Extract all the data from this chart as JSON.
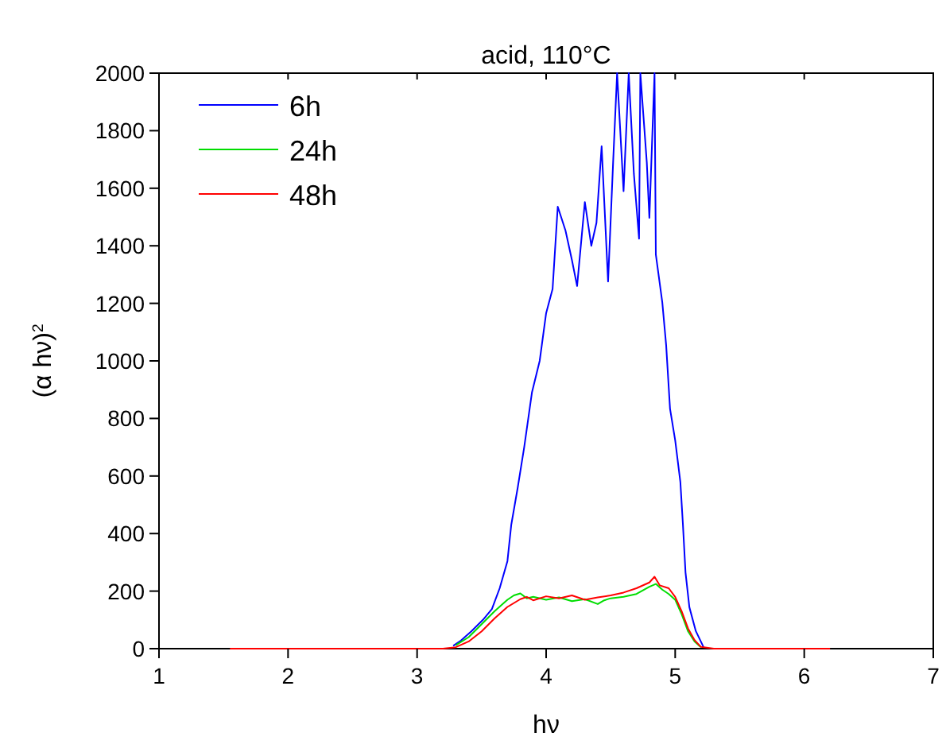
{
  "chart_data": {
    "type": "line",
    "title": "acid, 110°C",
    "xlabel": "hν",
    "ylabel": "(α hν)$^{2}$",
    "xlim": [
      1,
      7
    ],
    "xticks": [
      1,
      2,
      3,
      4,
      5,
      6,
      7
    ],
    "ylim": [
      0,
      2000
    ],
    "yticks": [
      0,
      200,
      400,
      600,
      800,
      1000,
      1200,
      1400,
      1600,
      1800,
      2000
    ],
    "grid": false,
    "legend": "top left",
    "line_style": "solid",
    "series": [
      {
        "name": "6h",
        "color": "#0000ff",
        "x": [
          3.28,
          3.34,
          3.42,
          3.51,
          3.58,
          3.64,
          3.7,
          3.73,
          3.78,
          3.83,
          3.89,
          3.95,
          4.0,
          4.05,
          4.09,
          4.15,
          4.2,
          4.24,
          4.3,
          4.35,
          4.39,
          4.43,
          4.48,
          4.52,
          4.55,
          4.6,
          4.64,
          4.68,
          4.72,
          4.73,
          4.78,
          4.8,
          4.84,
          4.85,
          4.9,
          4.93,
          4.96,
          5.0,
          5.04,
          5.06,
          5.08,
          5.11,
          5.16,
          5.22
        ],
        "values": [
          10,
          28,
          60,
          100,
          138,
          210,
          304,
          431,
          560,
          700,
          890,
          1000,
          1166,
          1250,
          1536,
          1453,
          1350,
          1260,
          1552,
          1400,
          1480,
          1746,
          1276,
          1700,
          2000,
          1590,
          2000,
          1650,
          1425,
          2000,
          1690,
          1497,
          2000,
          1370,
          1204,
          1055,
          834,
          724,
          580,
          431,
          265,
          144,
          61,
          5
        ]
      },
      {
        "name": "24h",
        "color": "#00dd00",
        "x": [
          3.3,
          3.4,
          3.5,
          3.6,
          3.7,
          3.75,
          3.8,
          3.85,
          3.9,
          4.0,
          4.1,
          4.2,
          4.3,
          4.4,
          4.45,
          4.5,
          4.6,
          4.7,
          4.8,
          4.85,
          4.9,
          4.95,
          5.0,
          5.05,
          5.1,
          5.15,
          5.2
        ],
        "values": [
          12,
          40,
          85,
          130,
          170,
          185,
          192,
          175,
          180,
          170,
          178,
          165,
          172,
          155,
          168,
          175,
          180,
          190,
          215,
          225,
          205,
          190,
          170,
          120,
          60,
          25,
          5
        ]
      },
      {
        "name": "48h",
        "color": "#ff0000",
        "x": [
          1.55,
          2.5,
          3.2,
          3.3,
          3.4,
          3.5,
          3.6,
          3.7,
          3.8,
          3.85,
          3.9,
          4.0,
          4.1,
          4.2,
          4.3,
          4.4,
          4.5,
          4.6,
          4.7,
          4.8,
          4.84,
          4.88,
          4.95,
          5.0,
          5.05,
          5.1,
          5.15,
          5.2,
          5.3,
          6.2
        ],
        "values": [
          0,
          0,
          0,
          5,
          25,
          60,
          105,
          145,
          172,
          180,
          168,
          182,
          175,
          185,
          170,
          178,
          185,
          195,
          210,
          230,
          250,
          220,
          210,
          180,
          130,
          70,
          30,
          6,
          0,
          0
        ]
      }
    ]
  }
}
